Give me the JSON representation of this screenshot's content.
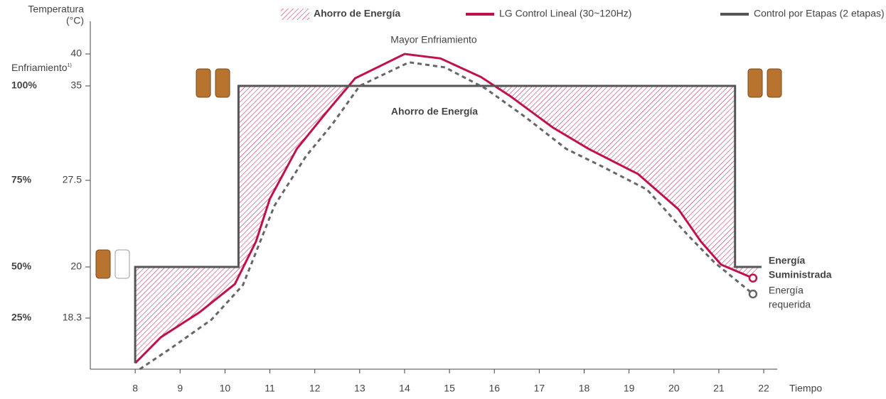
{
  "chart_data": {
    "type": "line",
    "y_label": [
      "Temperatura",
      "(°C)"
    ],
    "cooling_label": "Enfriamiento",
    "cooling_note": "1)",
    "x_label": "Tiempo",
    "xlim": [
      7,
      22.3
    ],
    "xticks": [
      8,
      9,
      10,
      11,
      12,
      13,
      14,
      15,
      16,
      17,
      18,
      19,
      20,
      21,
      22
    ],
    "ylim": [
      16.6,
      45.1
    ],
    "yticks": [
      18.3,
      20,
      27.5,
      35,
      40
    ],
    "cooling_ticks": [
      {
        "value": 35,
        "label": "100%"
      },
      {
        "value": 27.5,
        "label": "75%"
      },
      {
        "value": 20,
        "label": "50%"
      },
      {
        "value": 18.3,
        "label": "25%"
      }
    ],
    "fill_area": {
      "name": "Ahorro de Energía",
      "color": "#c0124a"
    },
    "annotations": [
      "Mayor Enfriamiento",
      "Ahorro de Energía"
    ],
    "series": [
      {
        "name": "LG Control Lineal (30~120Hz)",
        "color": "#c0124a",
        "style": "solid",
        "end_label": [
          "Energía",
          "Suministrada"
        ],
        "x": [
          8,
          8.57,
          9.43,
          10.22,
          10.69,
          11,
          11.6,
          12.26,
          12.9,
          14,
          14.8,
          15.7,
          16.35,
          17.3,
          18.1,
          19.2,
          20.1,
          20.6,
          21.05,
          21.76
        ],
        "values": [
          16.8,
          17.66,
          18.49,
          19.43,
          22.2,
          25.9,
          30.0,
          32.9,
          36.2,
          40,
          39.3,
          36.4,
          34.2,
          31.7,
          30.0,
          28.0,
          25.0,
          22.2,
          20.2,
          19.63
        ]
      },
      {
        "name": "Control por Etapas (2 etapas)",
        "color": "#555555",
        "style": "step",
        "x": [
          8,
          8,
          10.3,
          10.3,
          21.36,
          21.36,
          21.95
        ],
        "values": [
          16.8,
          20,
          20,
          35,
          35,
          20,
          20
        ]
      },
      {
        "color": "#666666",
        "style": "dashed",
        "end_label": [
          "Energía",
          "requerida"
        ],
        "x": [
          8.1,
          8.8,
          9.7,
          10.4,
          11.1,
          11.8,
          12.4,
          13.0,
          14.1,
          14.9,
          15.8,
          16.7,
          17.6,
          18.4,
          19.4,
          20.3,
          20.9,
          21.76
        ],
        "values": [
          16.6,
          17.3,
          18.25,
          19.4,
          25.3,
          29.4,
          32.0,
          35.0,
          38.7,
          37.9,
          34.8,
          32.5,
          30.0,
          28.6,
          26.7,
          22.8,
          20.4,
          19.1
        ]
      }
    ]
  }
}
